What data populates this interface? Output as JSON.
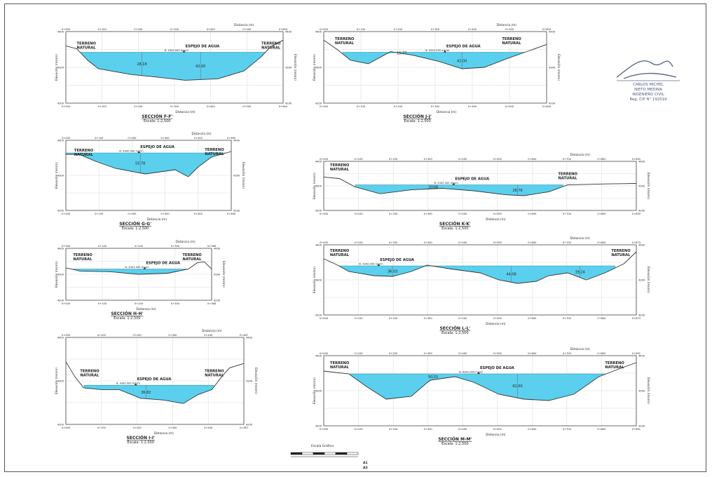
{
  "labels": {
    "distancia": "Distancia (m)",
    "elevacion": "Elevación (msnm)",
    "terreno_l1": "TERRENO",
    "terreno_l2": "NATURAL",
    "espejo": "ESPEJO DE AGUA",
    "nivel": "N. 4342.000 msnm"
  },
  "colors": {
    "water": "#5bd0ee",
    "grid": "#dcdcdc",
    "frame": "#444444",
    "terrain": "#333333"
  },
  "sections": [
    {
      "title": "SECCIÓN F-F'",
      "scale": "Escala: 1:2,500",
      "ticks": [
        "0+000",
        "0+100",
        "0+200",
        "0+300",
        "0+400",
        "0+500",
        "0+604"
      ],
      "y_top": "4400",
      "y_mid": "4300",
      "y_bot": "4200",
      "depths": [
        "28.18",
        "42.00"
      ]
    },
    {
      "title": "SECCIÓN J-J'",
      "scale": "Escala: 1:2,500",
      "ticks": [
        "0+000",
        "0+100",
        "0+200",
        "0+300",
        "0+400",
        "0+500",
        "0+604"
      ],
      "y_top": "4400",
      "y_mid": "4300",
      "y_bot": "4200",
      "depths": [
        "15.77",
        "42.00"
      ]
    },
    {
      "title": "SECCIÓN G-G'",
      "scale": "Escala: 1:2,500",
      "ticks": [
        "0+000",
        "0+100",
        "0+200",
        "0+300",
        "0+400",
        "0+460"
      ],
      "y_top": "4400",
      "y_mid": "4300",
      "y_bot": "4200",
      "depths": [
        "55.78"
      ]
    },
    {
      "title": "SECCIÓN K-K'",
      "scale": "Escala: 1:2,500",
      "ticks": [
        "0+000",
        "0+100",
        "0+200",
        "0+300",
        "0+400",
        "0+500",
        "0+600",
        "0+700",
        "0+800",
        "0+855"
      ],
      "y_top": "4400",
      "y_mid": "4300",
      "y_bot": "4200",
      "depths": [
        "20.08",
        "28.76"
      ]
    },
    {
      "title": "SECCIÓN H-H'",
      "scale": "Escala: 1:2,500",
      "ticks": [
        "0+000",
        "0+100",
        "0+200",
        "0+300",
        "0+368"
      ],
      "y_top": "4400",
      "y_mid": "4300",
      "y_bot": "4200",
      "depths": []
    },
    {
      "title": "SECCIÓN L-L'",
      "scale": "Escala: 1:2,500",
      "ticks": [
        "0+000",
        "0+100",
        "0+200",
        "0+300",
        "0+400",
        "0+500",
        "0+600",
        "0+700",
        "0+800",
        "0+873"
      ],
      "y_top": "4400",
      "y_mid": "4300",
      "y_bot": "4200",
      "depths": [
        "36.03",
        "44.08",
        "39.24"
      ]
    },
    {
      "title": "SECCIÓN I-I'",
      "scale": "Escala: 1:2,500",
      "ticks": [
        "0+000",
        "0+100",
        "0+200",
        "0+300",
        "0+400",
        "0+487"
      ],
      "y_top": "4400",
      "y_mid": "4300",
      "y_bot": "4200",
      "depths": [
        "36.82"
      ]
    },
    {
      "title": "SECCIÓN M-M'",
      "scale": "Escala: 1:2,500",
      "ticks": [
        "0+000",
        "0+100",
        "0+200",
        "0+300",
        "0+400",
        "0+500",
        "0+600",
        "0+700",
        "0+800",
        "0+891"
      ],
      "y_top": "4400",
      "y_mid": "4300",
      "y_bot": "4200",
      "depths": [
        "50.15",
        "62.00"
      ]
    }
  ],
  "stamp": {
    "name1": "CARLOS MICHEL",
    "name2": "NIETO MEDINA",
    "profession": "INGENIERO CIVIL",
    "reg": "Reg. CIP N° 192019"
  },
  "graphic_scale": {
    "title": "Escala Gráfica",
    "sheet_a1": "A1",
    "sheet_a3": "A3"
  }
}
